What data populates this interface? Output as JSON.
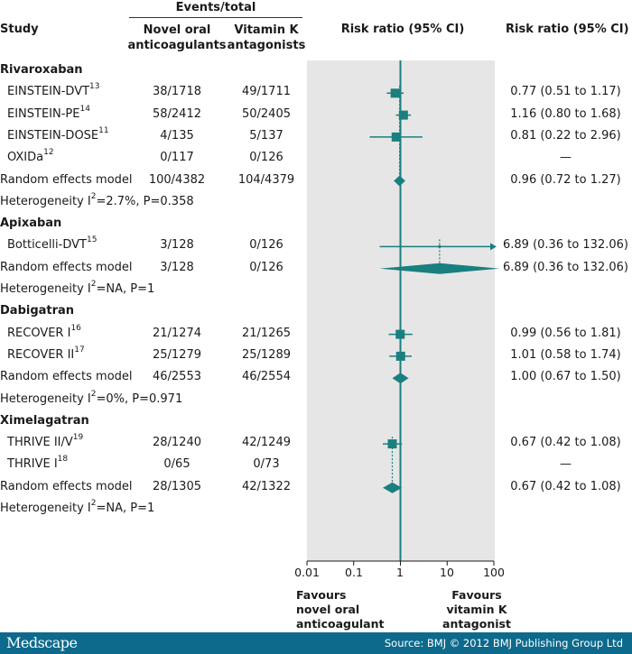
{
  "header": {
    "events_total": "Events/total",
    "study": "Study",
    "novel_line1": "Novel oral",
    "novel_line2": "anticoagulants",
    "vka_line1": "Vitamin K",
    "vka_line2": "antagonists",
    "rr_plot": "Risk ratio (95% CI)",
    "rr_text": "Risk ratio (95% CI)"
  },
  "rows": [
    {
      "kind": "group",
      "label": "Rivaroxaban"
    },
    {
      "kind": "study",
      "label": "EINSTEIN-DVT",
      "sup": "13",
      "novel": "38/1718",
      "vka": "49/1711",
      "rr": "0.77 (0.51 to 1.17)"
    },
    {
      "kind": "study",
      "label": "EINSTEIN-PE",
      "sup": "14",
      "novel": "58/2412",
      "vka": "50/2405",
      "rr": "1.16 (0.80 to 1.68)"
    },
    {
      "kind": "study",
      "label": "EINSTEIN-DOSE",
      "sup": "11",
      "novel": "4/135",
      "vka": "5/137",
      "rr": "0.81 (0.22 to 2.96)"
    },
    {
      "kind": "study",
      "label": "OXIDa",
      "sup": "12",
      "novel": "0/117",
      "vka": "0/126",
      "rr": "—"
    },
    {
      "kind": "model",
      "label": "Random effects model",
      "novel": "100/4382",
      "vka": "104/4379",
      "rr": "0.96 (0.72 to 1.27)"
    },
    {
      "kind": "het",
      "pre": "Heterogeneity I",
      "sup": "2",
      "post": "=2.7%, P=0.358"
    },
    {
      "kind": "group",
      "label": "Apixaban"
    },
    {
      "kind": "study",
      "label": "Botticelli-DVT",
      "sup": "15",
      "novel": "3/128",
      "vka": "0/126",
      "rr": "6.89 (0.36 to 132.06)"
    },
    {
      "kind": "model",
      "label": "Random effects model",
      "novel": "3/128",
      "vka": "0/126",
      "rr": "6.89 (0.36 to 132.06)"
    },
    {
      "kind": "het",
      "pre": "Heterogeneity I",
      "sup": "2",
      "post": "=NA, P=1"
    },
    {
      "kind": "group",
      "label": "Dabigatran"
    },
    {
      "kind": "study",
      "label": "RECOVER I",
      "sup": "16",
      "novel": "21/1274",
      "vka": "21/1265",
      "rr": "0.99 (0.56 to 1.81)"
    },
    {
      "kind": "study",
      "label": "RECOVER II",
      "sup": "17",
      "novel": "25/1279",
      "vka": "25/1289",
      "rr": "1.01 (0.58 to 1.74)"
    },
    {
      "kind": "model",
      "label": "Random effects model",
      "novel": "46/2553",
      "vka": "46/2554",
      "rr": "1.00 (0.67 to 1.50)"
    },
    {
      "kind": "het",
      "pre": "Heterogeneity I",
      "sup": "2",
      "post": "=0%, P=0.971"
    },
    {
      "kind": "group",
      "label": "Ximelagatran"
    },
    {
      "kind": "study",
      "label": "THRIVE II/V",
      "sup": "19",
      "novel": "28/1240",
      "vka": "42/1249",
      "rr": "0.67 (0.42 to 1.08)"
    },
    {
      "kind": "study",
      "label": "THRIVE I",
      "sup": "18",
      "novel": "0/65",
      "vka": "0/73",
      "rr": "—"
    },
    {
      "kind": "model",
      "label": "Random effects model",
      "novel": "28/1305",
      "vka": "42/1322",
      "rr": "0.67 (0.42 to 1.08)"
    },
    {
      "kind": "het",
      "pre": "Heterogeneity I",
      "sup": "2",
      "post": "=NA, P=1"
    }
  ],
  "axis": {
    "ticks": [
      "0.01",
      "0.1",
      "1",
      "10",
      "100"
    ]
  },
  "favours": {
    "left_line1": "Favours",
    "left_line2": "novel oral",
    "left_line3": "anticoagulant",
    "right_line1": "Favours",
    "right_line2": "vitamin K",
    "right_line3": "antagonist"
  },
  "footer": {
    "logo": "Medscape",
    "source": "Source: BMJ © 2012 BMJ Publishing Group Ltd"
  },
  "colors": {
    "marker": "#1a7f7f",
    "panel": "#e6e6e6",
    "footer_bg": "#0d6a8c"
  },
  "chart_data": {
    "type": "forest",
    "scale": "log",
    "xlim": [
      0.01,
      100
    ],
    "ticks": [
      0.01,
      0.1,
      1,
      10,
      100
    ],
    "studies": [
      {
        "row": 1,
        "name": "EINSTEIN-DVT",
        "est": 0.77,
        "lo": 0.51,
        "hi": 1.17,
        "kind": "study"
      },
      {
        "row": 2,
        "name": "EINSTEIN-PE",
        "est": 1.16,
        "lo": 0.8,
        "hi": 1.68,
        "kind": "study"
      },
      {
        "row": 3,
        "name": "EINSTEIN-DOSE",
        "est": 0.81,
        "lo": 0.22,
        "hi": 2.96,
        "kind": "study"
      },
      {
        "row": 5,
        "name": "Rivaroxaban pooled",
        "est": 0.96,
        "lo": 0.72,
        "hi": 1.27,
        "kind": "model"
      },
      {
        "row": 8,
        "name": "Botticelli-DVT",
        "est": 6.89,
        "lo": 0.36,
        "hi": 132.06,
        "kind": "study",
        "arrow": true
      },
      {
        "row": 9,
        "name": "Apixaban pooled",
        "est": 6.89,
        "lo": 0.36,
        "hi": 132.06,
        "kind": "model"
      },
      {
        "row": 12,
        "name": "RECOVER I",
        "est": 0.99,
        "lo": 0.56,
        "hi": 1.81,
        "kind": "study"
      },
      {
        "row": 13,
        "name": "RECOVER II",
        "est": 1.01,
        "lo": 0.58,
        "hi": 1.74,
        "kind": "study"
      },
      {
        "row": 14,
        "name": "Dabigatran pooled",
        "est": 1.0,
        "lo": 0.67,
        "hi": 1.5,
        "kind": "model"
      },
      {
        "row": 17,
        "name": "THRIVE II/V",
        "est": 0.67,
        "lo": 0.42,
        "hi": 1.08,
        "kind": "study"
      },
      {
        "row": 19,
        "name": "Ximelagatran pooled",
        "est": 0.67,
        "lo": 0.42,
        "hi": 1.08,
        "kind": "model"
      }
    ]
  }
}
